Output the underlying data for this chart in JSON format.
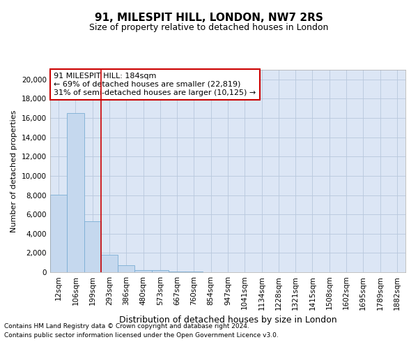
{
  "title": "91, MILESPIT HILL, LONDON, NW7 2RS",
  "subtitle": "Size of property relative to detached houses in London",
  "xlabel": "Distribution of detached houses by size in London",
  "ylabel": "Number of detached properties",
  "categories": [
    "12sqm",
    "106sqm",
    "199sqm",
    "293sqm",
    "386sqm",
    "480sqm",
    "573sqm",
    "667sqm",
    "760sqm",
    "854sqm",
    "947sqm",
    "1041sqm",
    "1134sqm",
    "1228sqm",
    "1321sqm",
    "1415sqm",
    "1508sqm",
    "1602sqm",
    "1695sqm",
    "1789sqm",
    "1882sqm"
  ],
  "values": [
    8050,
    16500,
    5300,
    1800,
    750,
    250,
    250,
    100,
    100,
    20,
    0,
    0,
    0,
    0,
    0,
    0,
    0,
    0,
    0,
    0,
    0
  ],
  "bar_color": "#c5d8ee",
  "bar_edge_color": "#7badd4",
  "vline_color": "#cc0000",
  "vline_pos": 2.5,
  "ylim": [
    0,
    21000
  ],
  "yticks": [
    0,
    2000,
    4000,
    6000,
    8000,
    10000,
    12000,
    14000,
    16000,
    18000,
    20000
  ],
  "annotation_text": "91 MILESPIT HILL: 184sqm\n← 69% of detached houses are smaller (22,819)\n31% of semi-detached houses are larger (10,125) →",
  "annotation_box_color": "#cc0000",
  "background_color": "#ffffff",
  "plot_bg_color": "#dce6f5",
  "grid_color": "#b8c8dc",
  "footnote1": "Contains HM Land Registry data © Crown copyright and database right 2024.",
  "footnote2": "Contains public sector information licensed under the Open Government Licence v3.0.",
  "title_fontsize": 11,
  "subtitle_fontsize": 9,
  "ylabel_fontsize": 8,
  "xlabel_fontsize": 9,
  "tick_fontsize": 7.5,
  "footnote_fontsize": 6.5
}
